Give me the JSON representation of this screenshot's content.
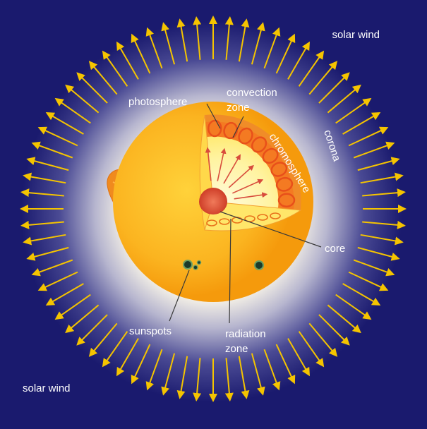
{
  "labels": {
    "solar_wind_top": "solar wind",
    "solar_wind_bottom": "solar wind",
    "photosphere": "photosphere",
    "convection_line1": "convection",
    "convection_line2": "zone",
    "chromosphere": "chromosphere",
    "corona": "corona",
    "core": "core",
    "sunspots": "sunspots",
    "radiation_line1": "radiation",
    "radiation_line2": "zone"
  },
  "colors": {
    "space": "#1a1a6e",
    "sun_outer": "#f59a0c",
    "sun_inner": "#ffd23a",
    "arrow": "#f5c400",
    "convection": "#e8501a",
    "core": "#c8321e",
    "label": "#ffffff"
  },
  "solar_wind_arrow_count": 72
}
